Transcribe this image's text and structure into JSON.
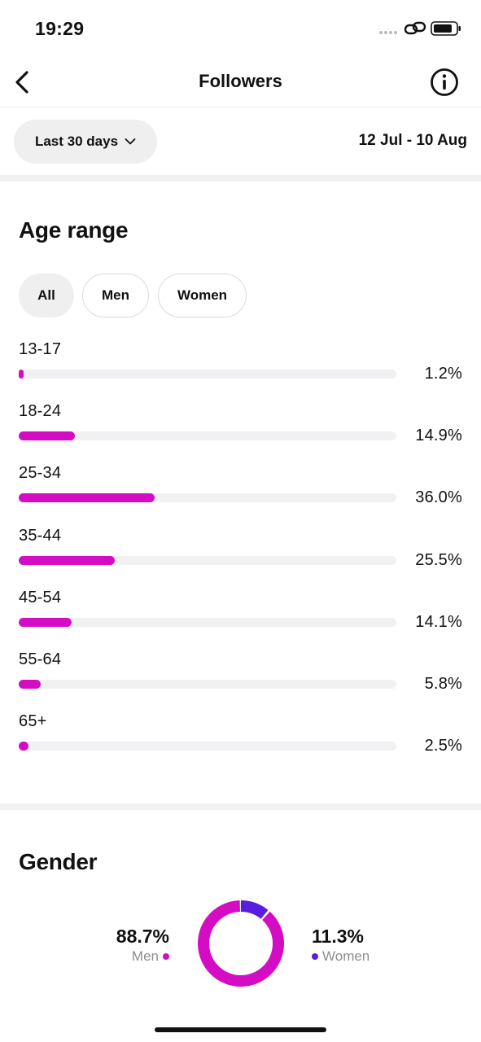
{
  "status_bar": {
    "time": "19:29"
  },
  "header": {
    "title": "Followers",
    "back_icon": "chevron-left-icon",
    "info_icon": "info-icon"
  },
  "filter": {
    "period": "Last 30 days",
    "date_range": "12 Jul - 10 Aug"
  },
  "age_range": {
    "title": "Age range",
    "chips": [
      "All",
      "Men",
      "Women"
    ],
    "selected_chip": "All",
    "bar_color": "#d40cc4",
    "rows": [
      {
        "label": "13-17",
        "value": "1.2%",
        "fraction": 0.012
      },
      {
        "label": "18-24",
        "value": "14.9%",
        "fraction": 0.149
      },
      {
        "label": "25-34",
        "value": "36.0%",
        "fraction": 0.36
      },
      {
        "label": "35-44",
        "value": "25.5%",
        "fraction": 0.255
      },
      {
        "label": "45-54",
        "value": "14.1%",
        "fraction": 0.141
      },
      {
        "label": "55-64",
        "value": "5.8%",
        "fraction": 0.058
      },
      {
        "label": "65+",
        "value": "2.5%",
        "fraction": 0.025
      }
    ]
  },
  "gender": {
    "title": "Gender",
    "men": {
      "value": "88.7%",
      "label": "Men",
      "fraction": 0.887,
      "color": "#d40cc4"
    },
    "women": {
      "value": "11.3%",
      "label": "Women",
      "fraction": 0.113,
      "color": "#5a1de0"
    }
  }
}
